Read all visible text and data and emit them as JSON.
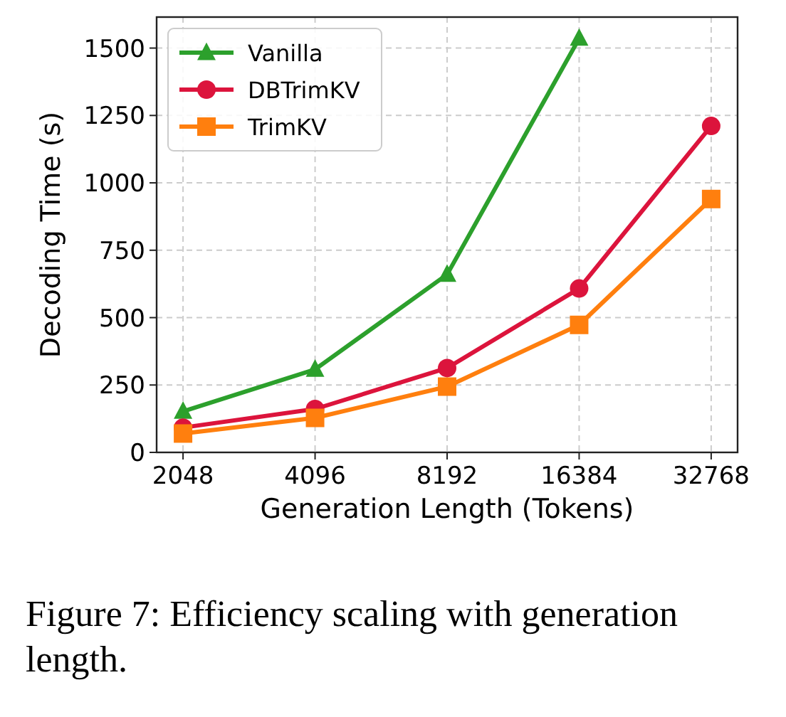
{
  "chart_data": {
    "type": "line",
    "xlabel": "Generation Length (Tokens)",
    "ylabel": "Decoding Time (s)",
    "categories": [
      "2048",
      "4096",
      "8192",
      "16384",
      "32768"
    ],
    "series": [
      {
        "name": "Vanilla",
        "color": "#2ca02c",
        "marker": "triangle",
        "values": [
          152,
          308,
          660,
          1536,
          null
        ]
      },
      {
        "name": "DBTrimKV",
        "color": "#dc143c",
        "marker": "circle",
        "values": [
          92,
          161,
          313,
          608,
          1211
        ]
      },
      {
        "name": "TrimKV",
        "color": "#ff7f0e",
        "marker": "square",
        "values": [
          70,
          128,
          244,
          473,
          940
        ]
      }
    ],
    "ylim": [
      0,
      1615
    ],
    "yticks": [
      0,
      250,
      500,
      750,
      1000,
      1250,
      1500
    ],
    "grid": true,
    "legend": "top left",
    "line_style": "solid",
    "annotations": [
      "Figure 7: Efficiency scaling with generation length."
    ]
  }
}
